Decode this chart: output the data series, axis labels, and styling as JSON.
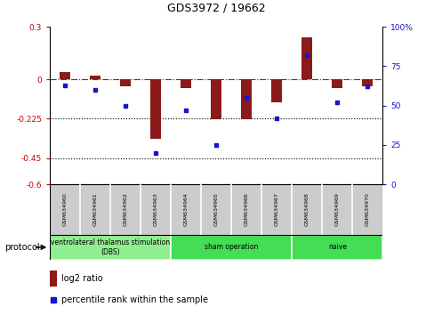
{
  "title": "GDS3972 / 19662",
  "samples": [
    "GSM634960",
    "GSM634961",
    "GSM634962",
    "GSM634963",
    "GSM634964",
    "GSM634965",
    "GSM634966",
    "GSM634967",
    "GSM634968",
    "GSM634969",
    "GSM634970"
  ],
  "log2_ratio": [
    0.04,
    0.02,
    -0.04,
    -0.34,
    -0.05,
    -0.23,
    -0.23,
    -0.13,
    0.24,
    -0.05,
    -0.04
  ],
  "percentile_rank": [
    63,
    60,
    50,
    20,
    47,
    25,
    55,
    42,
    82,
    52,
    62
  ],
  "ylim_left": [
    -0.6,
    0.3
  ],
  "ylim_right": [
    0,
    100
  ],
  "yticks_left": [
    -0.6,
    -0.45,
    -0.225,
    0,
    0.3
  ],
  "yticks_left_labels": [
    "-0.6",
    "-0.45",
    "-0.225",
    "0",
    "0.3"
  ],
  "yticks_right": [
    0,
    25,
    50,
    75,
    100
  ],
  "yticks_right_labels": [
    "0",
    "25",
    "50",
    "75",
    "100%"
  ],
  "hlines": [
    -0.225,
    -0.45
  ],
  "bar_color": "#8B1A1A",
  "dot_color": "#1515CC",
  "protocol_groups": [
    {
      "label": "ventrolateral thalamus stimulation\n(DBS)",
      "start": 0,
      "end": 3,
      "color": "#90EE90"
    },
    {
      "label": "sham operation",
      "start": 4,
      "end": 7,
      "color": "#44DD55"
    },
    {
      "label": "naive",
      "start": 8,
      "end": 10,
      "color": "#44DD55"
    }
  ],
  "legend_bar_color": "#8B1A1A",
  "legend_dot_color": "#1515CC",
  "legend_bar_label": "log2 ratio",
  "legend_dot_label": "percentile rank within the sample",
  "protocol_label": "protocol",
  "background_color": "#ffffff",
  "bar_width": 0.35,
  "sample_box_color": "#CCCCCC",
  "group_border_color": "#000000"
}
